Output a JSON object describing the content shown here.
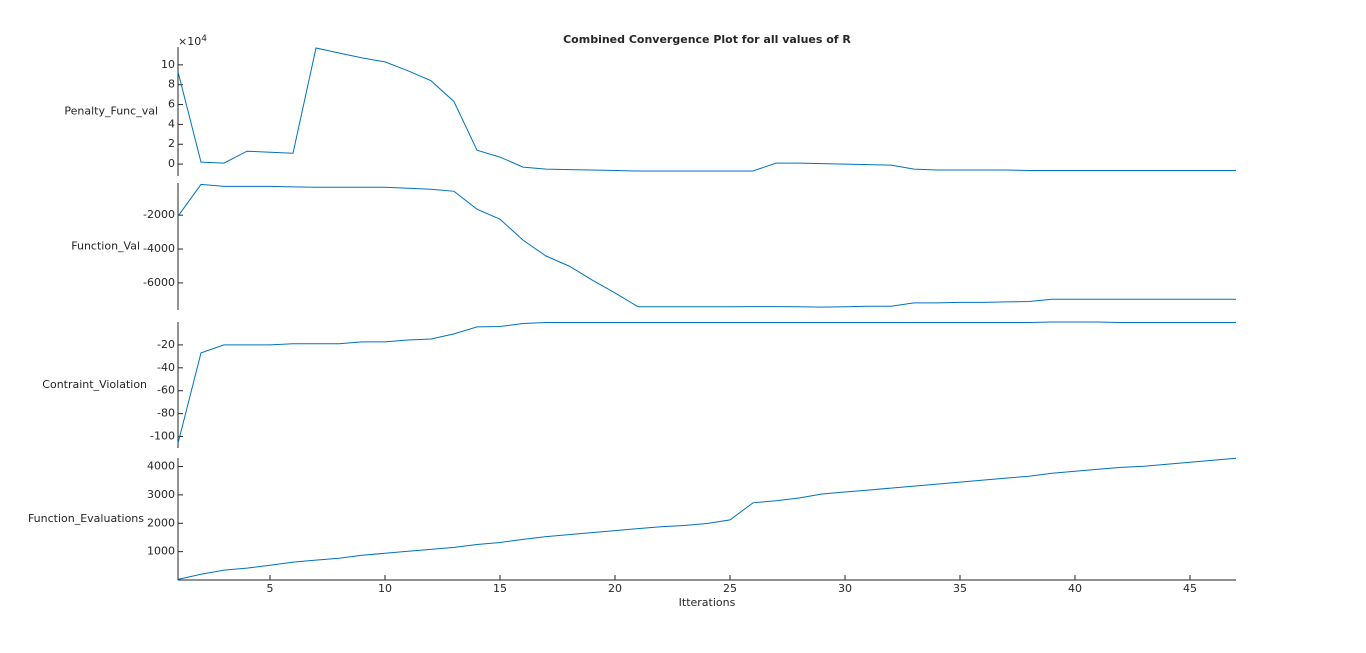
{
  "chart_data": {
    "type": "stacked_line",
    "title": "Combined Convergence Plot for all values of R",
    "x_label": "Itterations",
    "x": [
      1,
      2,
      3,
      4,
      5,
      6,
      7,
      8,
      9,
      10,
      11,
      12,
      13,
      14,
      15,
      16,
      17,
      18,
      19,
      20,
      21,
      22,
      23,
      24,
      25,
      26,
      27,
      28,
      29,
      30,
      31,
      32,
      33,
      34,
      35,
      36,
      37,
      38,
      39,
      40,
      41,
      42,
      43,
      44,
      45,
      46,
      47
    ],
    "xlim": [
      1,
      47
    ],
    "xticks": [
      5,
      10,
      15,
      20,
      25,
      30,
      35,
      40,
      45
    ],
    "series": [
      {
        "name": "Penalty_Func_val",
        "color": "#0072bd",
        "scale_base": "×10",
        "scale_exponent": "4",
        "ylim": [
          -1.2,
          11.8
        ],
        "yticks": [
          0,
          2,
          4,
          6,
          8,
          10
        ],
        "values": [
          9.3,
          0.2,
          0.1,
          1.3,
          1.2,
          1.1,
          11.7,
          11.2,
          10.7,
          10.3,
          9.4,
          8.4,
          6.3,
          1.4,
          0.7,
          -0.3,
          -0.5,
          -0.55,
          -0.6,
          -0.65,
          -0.7,
          -0.7,
          -0.7,
          -0.7,
          -0.7,
          -0.7,
          0.1,
          0.1,
          0.05,
          0,
          -0.05,
          -0.1,
          -0.5,
          -0.6,
          -0.6,
          -0.6,
          -0.6,
          -0.65,
          -0.65,
          -0.65,
          -0.65,
          -0.65,
          -0.65,
          -0.65,
          -0.65,
          -0.65,
          -0.65
        ]
      },
      {
        "name": "Function_Val",
        "color": "#0072bd",
        "ylim": [
          -7600,
          -100
        ],
        "yticks": [
          -6000,
          -4000,
          -2000
        ],
        "values": [
          -2060,
          -180,
          -300,
          -300,
          -300,
          -330,
          -350,
          -350,
          -350,
          -350,
          -410,
          -470,
          -590,
          -1650,
          -2240,
          -3470,
          -4410,
          -5000,
          -5820,
          -6590,
          -7410,
          -7410,
          -7410,
          -7410,
          -7410,
          -7400,
          -7400,
          -7410,
          -7430,
          -7410,
          -7380,
          -7380,
          -7180,
          -7180,
          -7150,
          -7150,
          -7120,
          -7100,
          -6970,
          -6970,
          -6970,
          -6970,
          -6970,
          -6970,
          -6970,
          -6970,
          -6970
        ]
      },
      {
        "name": "Contraint_Violation",
        "color": "#0072bd",
        "ylim": [
          -110,
          0
        ],
        "yticks": [
          -100,
          -80,
          -60,
          -40,
          -20
        ],
        "values": [
          -106,
          -27,
          -20,
          -20,
          -20,
          -19,
          -19,
          -19,
          -17.4,
          -17.4,
          -15.7,
          -14.8,
          -10.4,
          -4.3,
          -3.9,
          -1.3,
          -0.4,
          -0.4,
          -0.4,
          -0.4,
          -0.4,
          -0.4,
          -0.4,
          -0.4,
          -0.4,
          -0.4,
          -0.4,
          -0.4,
          -0.4,
          -0.4,
          -0.4,
          -0.4,
          -0.4,
          -0.4,
          -0.4,
          -0.4,
          -0.4,
          -0.4,
          0,
          0,
          0,
          -0.4,
          -0.4,
          -0.4,
          -0.4,
          -0.4,
          -0.4
        ]
      },
      {
        "name": "Function_Evaluations",
        "color": "#0072bd",
        "ylim": [
          0,
          4300
        ],
        "yticks": [
          1000,
          2000,
          3000,
          4000
        ],
        "values": [
          20,
          200,
          350,
          420,
          520,
          630,
          700,
          770,
          870,
          940,
          1010,
          1080,
          1150,
          1250,
          1320,
          1430,
          1530,
          1600,
          1670,
          1740,
          1810,
          1880,
          1920,
          1990,
          2120,
          2720,
          2790,
          2890,
          3030,
          3100,
          3170,
          3240,
          3310,
          3380,
          3450,
          3520,
          3590,
          3660,
          3760,
          3830,
          3900,
          3970,
          4010,
          4080,
          4150,
          4220,
          4290
        ]
      }
    ]
  }
}
